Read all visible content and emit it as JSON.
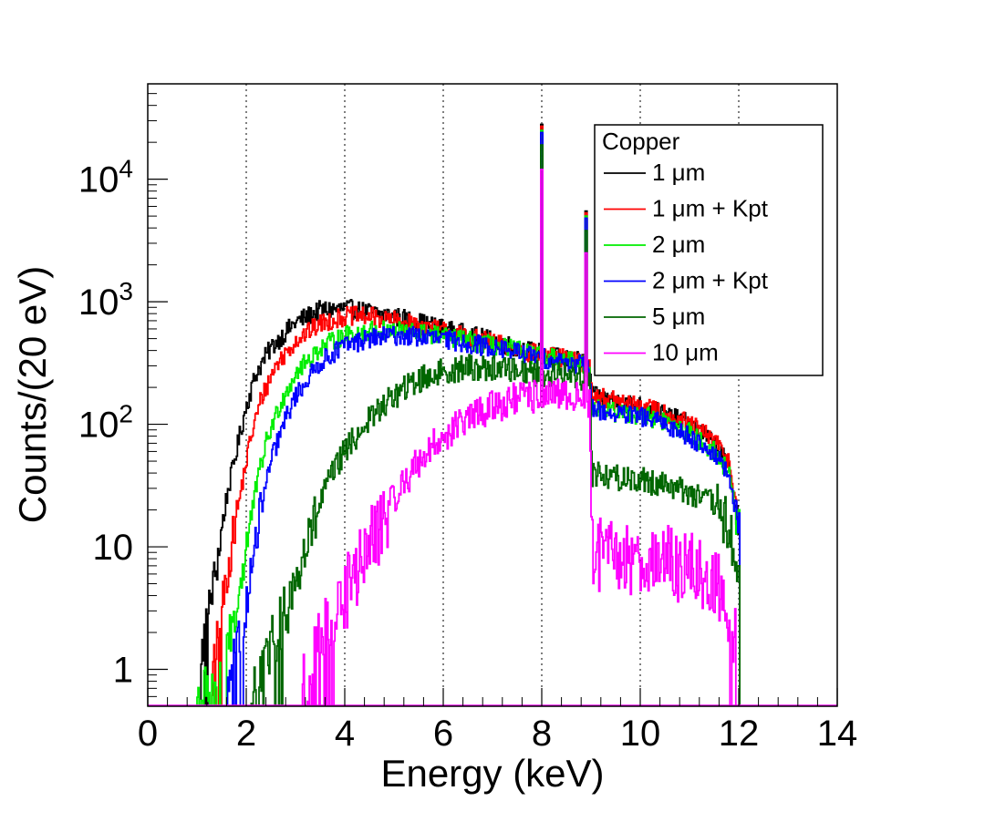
{
  "chart_data": {
    "type": "line",
    "step": true,
    "title": "",
    "xlabel": "Energy (keV)",
    "ylabel": "Counts/(20 eV)",
    "xlim": [
      0,
      14
    ],
    "ylim": [
      0.5,
      60000
    ],
    "yscale": "log",
    "grid": "vertical-dotted",
    "legend": {
      "title": "Copper",
      "position": "top-right"
    },
    "x_ticks": [
      {
        "value": 0,
        "label": "0"
      },
      {
        "value": 2,
        "label": "2"
      },
      {
        "value": 4,
        "label": "4"
      },
      {
        "value": 6,
        "label": "6"
      },
      {
        "value": 8,
        "label": "8"
      },
      {
        "value": 10,
        "label": "10"
      },
      {
        "value": 12,
        "label": "12"
      },
      {
        "value": 14,
        "label": "14"
      }
    ],
    "y_ticks": [
      {
        "value": 1,
        "base": "1",
        "exp": ""
      },
      {
        "value": 10,
        "base": "10",
        "exp": ""
      },
      {
        "value": 100,
        "base": "10",
        "exp": "2"
      },
      {
        "value": 1000,
        "base": "10",
        "exp": "3"
      },
      {
        "value": 10000,
        "base": "10",
        "exp": "4"
      }
    ],
    "series": [
      {
        "name": "1 μm",
        "color": "#000000",
        "onset": 1.0,
        "end": 12.02,
        "scatter": 0.16,
        "points": [
          [
            1.0,
            0.8
          ],
          [
            1.2,
            2.5
          ],
          [
            1.4,
            7
          ],
          [
            1.6,
            25
          ],
          [
            1.8,
            60
          ],
          [
            2.0,
            140
          ],
          [
            2.2,
            260
          ],
          [
            2.5,
            420
          ],
          [
            3.0,
            680
          ],
          [
            3.5,
            850
          ],
          [
            4.0,
            880
          ],
          [
            4.5,
            820
          ],
          [
            5.0,
            760
          ],
          [
            5.5,
            680
          ],
          [
            6.0,
            600
          ],
          [
            6.5,
            540
          ],
          [
            7.0,
            480
          ],
          [
            7.5,
            420
          ],
          [
            7.98,
            380
          ],
          [
            8.0,
            28000
          ],
          [
            8.02,
            370
          ],
          [
            8.5,
            340
          ],
          [
            8.88,
            320
          ],
          [
            8.9,
            5500
          ],
          [
            8.92,
            300
          ],
          [
            8.98,
            280
          ],
          [
            9.02,
            170
          ],
          [
            9.5,
            155
          ],
          [
            10.0,
            140
          ],
          [
            10.5,
            120
          ],
          [
            11.0,
            100
          ],
          [
            11.5,
            70
          ],
          [
            11.8,
            45
          ],
          [
            12.0,
            15
          ]
        ]
      },
      {
        "name": "1 μm + Kpt",
        "color": "#ff0000",
        "onset": 1.3,
        "end": 12.02,
        "scatter": 0.16,
        "points": [
          [
            1.3,
            0.8
          ],
          [
            1.5,
            3
          ],
          [
            1.7,
            10
          ],
          [
            1.9,
            30
          ],
          [
            2.1,
            80
          ],
          [
            2.3,
            160
          ],
          [
            2.6,
            300
          ],
          [
            3.0,
            480
          ],
          [
            3.5,
            660
          ],
          [
            4.0,
            760
          ],
          [
            4.5,
            760
          ],
          [
            5.0,
            700
          ],
          [
            5.5,
            640
          ],
          [
            6.0,
            580
          ],
          [
            6.5,
            520
          ],
          [
            7.0,
            460
          ],
          [
            7.5,
            410
          ],
          [
            7.98,
            370
          ],
          [
            8.0,
            27000
          ],
          [
            8.02,
            365
          ],
          [
            8.5,
            340
          ],
          [
            8.88,
            320
          ],
          [
            8.9,
            5300
          ],
          [
            8.92,
            300
          ],
          [
            8.98,
            280
          ],
          [
            9.02,
            170
          ],
          [
            9.5,
            155
          ],
          [
            10.0,
            140
          ],
          [
            10.5,
            125
          ],
          [
            11.0,
            100
          ],
          [
            11.5,
            75
          ],
          [
            11.8,
            50
          ],
          [
            12.0,
            18
          ]
        ]
      },
      {
        "name": "2 μm",
        "color": "#00ee00",
        "onset": 1.0,
        "end": 12.02,
        "scatter": 0.16,
        "points": [
          [
            1.0,
            0.6
          ],
          [
            1.5,
            1
          ],
          [
            1.8,
            3
          ],
          [
            2.0,
            10
          ],
          [
            2.2,
            30
          ],
          [
            2.4,
            70
          ],
          [
            2.7,
            150
          ],
          [
            3.0,
            260
          ],
          [
            3.5,
            420
          ],
          [
            4.0,
            530
          ],
          [
            4.5,
            580
          ],
          [
            5.0,
            580
          ],
          [
            5.5,
            560
          ],
          [
            6.0,
            520
          ],
          [
            6.5,
            480
          ],
          [
            7.0,
            440
          ],
          [
            7.5,
            400
          ],
          [
            7.98,
            360
          ],
          [
            8.0,
            25000
          ],
          [
            8.02,
            355
          ],
          [
            8.5,
            330
          ],
          [
            8.88,
            310
          ],
          [
            8.9,
            5000
          ],
          [
            8.92,
            290
          ],
          [
            8.98,
            270
          ],
          [
            9.02,
            140
          ],
          [
            9.5,
            125
          ],
          [
            10.0,
            120
          ],
          [
            10.5,
            105
          ],
          [
            11.0,
            85
          ],
          [
            11.5,
            60
          ],
          [
            11.8,
            40
          ],
          [
            12.0,
            14
          ]
        ]
      },
      {
        "name": "2 μm + Kpt",
        "color": "#0000ff",
        "onset": 1.6,
        "end": 12.02,
        "scatter": 0.16,
        "points": [
          [
            1.6,
            0.7
          ],
          [
            1.9,
            2
          ],
          [
            2.1,
            6
          ],
          [
            2.3,
            20
          ],
          [
            2.5,
            50
          ],
          [
            2.8,
            110
          ],
          [
            3.0,
            170
          ],
          [
            3.5,
            320
          ],
          [
            4.0,
            440
          ],
          [
            4.5,
            500
          ],
          [
            5.0,
            530
          ],
          [
            5.5,
            520
          ],
          [
            6.0,
            490
          ],
          [
            6.5,
            460
          ],
          [
            7.0,
            420
          ],
          [
            7.5,
            390
          ],
          [
            7.98,
            350
          ],
          [
            8.0,
            24000
          ],
          [
            8.02,
            345
          ],
          [
            8.5,
            320
          ],
          [
            8.88,
            300
          ],
          [
            8.9,
            4800
          ],
          [
            8.92,
            280
          ],
          [
            8.98,
            260
          ],
          [
            9.02,
            135
          ],
          [
            9.5,
            120
          ],
          [
            10.0,
            115
          ],
          [
            10.5,
            100
          ],
          [
            11.0,
            80
          ],
          [
            11.5,
            58
          ],
          [
            11.8,
            38
          ],
          [
            12.0,
            13
          ]
        ]
      },
      {
        "name": "5 μm",
        "color": "#006600",
        "onset": 2.1,
        "end": 12.02,
        "scatter": 0.22,
        "points": [
          [
            2.1,
            0.7
          ],
          [
            2.5,
            1.5
          ],
          [
            2.8,
            3
          ],
          [
            3.0,
            5
          ],
          [
            3.3,
            12
          ],
          [
            3.6,
            30
          ],
          [
            4.0,
            60
          ],
          [
            4.5,
            110
          ],
          [
            5.0,
            170
          ],
          [
            5.5,
            230
          ],
          [
            6.0,
            270
          ],
          [
            6.5,
            290
          ],
          [
            7.0,
            290
          ],
          [
            7.5,
            280
          ],
          [
            7.98,
            260
          ],
          [
            8.0,
            19000
          ],
          [
            8.02,
            255
          ],
          [
            8.5,
            250
          ],
          [
            8.88,
            240
          ],
          [
            8.9,
            3800
          ],
          [
            8.92,
            230
          ],
          [
            8.98,
            220
          ],
          [
            9.02,
            40
          ],
          [
            9.5,
            37
          ],
          [
            10.0,
            35
          ],
          [
            10.5,
            33
          ],
          [
            11.0,
            28
          ],
          [
            11.5,
            22
          ],
          [
            11.8,
            14
          ],
          [
            12.0,
            5
          ]
        ]
      },
      {
        "name": "10 μm",
        "color": "#ff00ff",
        "onset": 3.1,
        "end": 12.02,
        "scatter": 0.28,
        "points": [
          [
            3.1,
            0.7
          ],
          [
            3.4,
            1.2
          ],
          [
            3.7,
            2.5
          ],
          [
            4.0,
            4
          ],
          [
            4.5,
            10
          ],
          [
            5.0,
            25
          ],
          [
            5.5,
            50
          ],
          [
            6.0,
            80
          ],
          [
            6.5,
            110
          ],
          [
            7.0,
            140
          ],
          [
            7.5,
            160
          ],
          [
            7.98,
            170
          ],
          [
            8.0,
            12000
          ],
          [
            8.02,
            165
          ],
          [
            8.5,
            170
          ],
          [
            8.88,
            160
          ],
          [
            8.9,
            2500
          ],
          [
            8.92,
            150
          ],
          [
            8.98,
            140
          ],
          [
            9.02,
            9
          ],
          [
            9.5,
            8
          ],
          [
            10.0,
            8
          ],
          [
            10.5,
            7.5
          ],
          [
            11.0,
            6.5
          ],
          [
            11.5,
            5
          ],
          [
            11.8,
            3
          ],
          [
            12.0,
            1.5
          ]
        ]
      }
    ]
  }
}
